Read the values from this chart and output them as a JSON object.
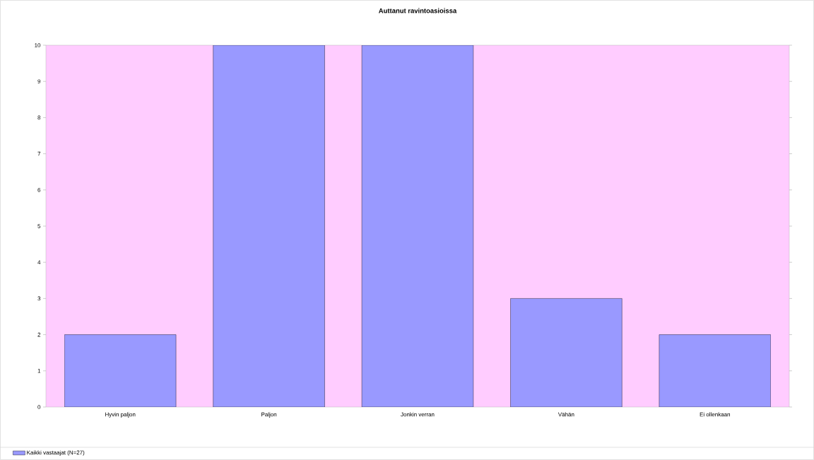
{
  "chart_data": {
    "type": "bar",
    "title": "Auttanut ravintoasioissa",
    "categories": [
      "Hyvin paljon",
      "Paljon",
      "Jonkin verran",
      "Vähän",
      "Ei ollenkaan"
    ],
    "series": [
      {
        "name": "Kaikki vastaajat (N=27)",
        "color": "#9999ff",
        "values": [
          2,
          10,
          10,
          3,
          2
        ]
      }
    ],
    "ylim": [
      0,
      10
    ],
    "yticks": [
      0,
      1,
      2,
      3,
      4,
      5,
      6,
      7,
      8,
      9,
      10
    ],
    "legend": "bottom left"
  }
}
